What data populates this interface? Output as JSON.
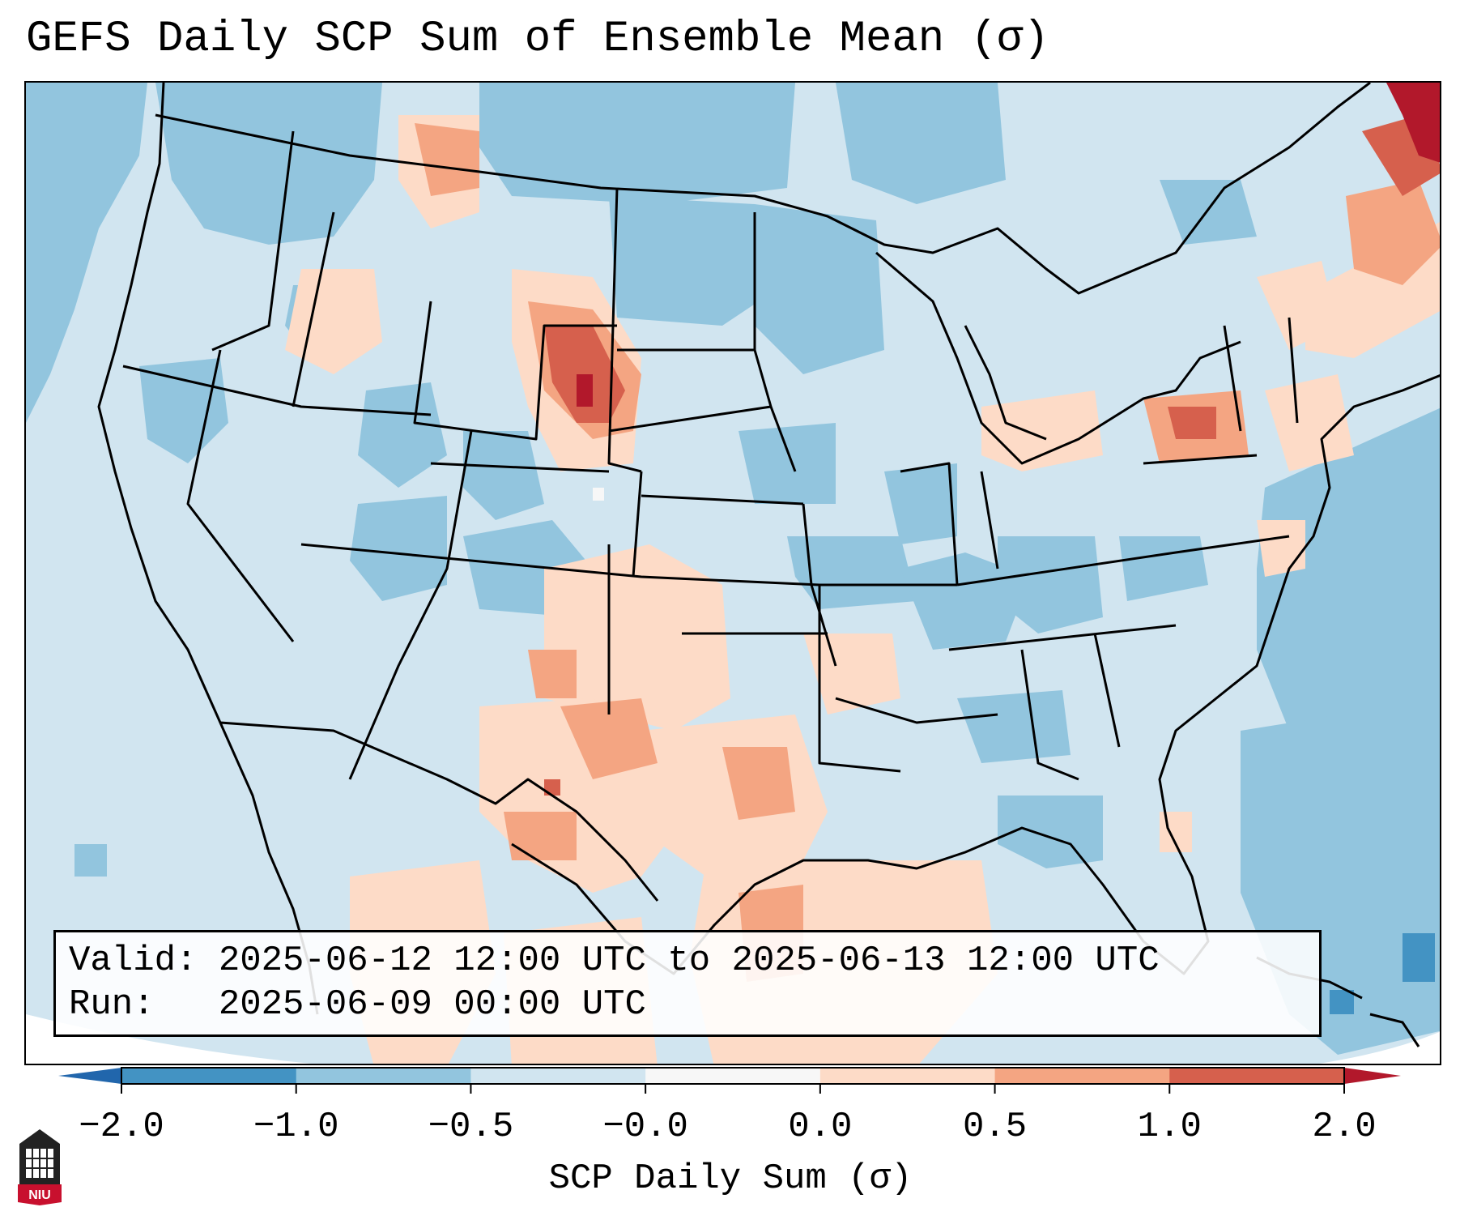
{
  "title": "GEFS Daily SCP Sum of Ensemble Mean (σ)",
  "info": {
    "valid_label": "Valid:",
    "valid_value": "2025-06-12 12:00 UTC to 2025-06-13 12:00 UTC",
    "run_label": "Run:",
    "run_value": "2025-06-09 00:00 UTC"
  },
  "colorbar": {
    "label": "SCP Daily Sum (σ)",
    "ticks": [
      "−2.0",
      "−1.0",
      "−0.5",
      "−0.0",
      "0.0",
      "0.5",
      "1.0",
      "2.0"
    ],
    "bin_colors": [
      "#4393c3",
      "#92c5de",
      "#d1e5f0",
      "#f7f7f7",
      "#fddbc7",
      "#f4a582",
      "#d6604d"
    ],
    "under_color": "#2166ac",
    "over_color": "#b2182b"
  },
  "logo_text": "NIU",
  "colors": {
    "background": "#d1e5f0",
    "negative_mid": "#92c5de",
    "negative_strong": "#4393c3",
    "positive_weak": "#fddbc7",
    "positive_mid": "#f4a582",
    "positive_strong": "#d6604d",
    "positive_max": "#b2182b",
    "border": "#000000"
  }
}
